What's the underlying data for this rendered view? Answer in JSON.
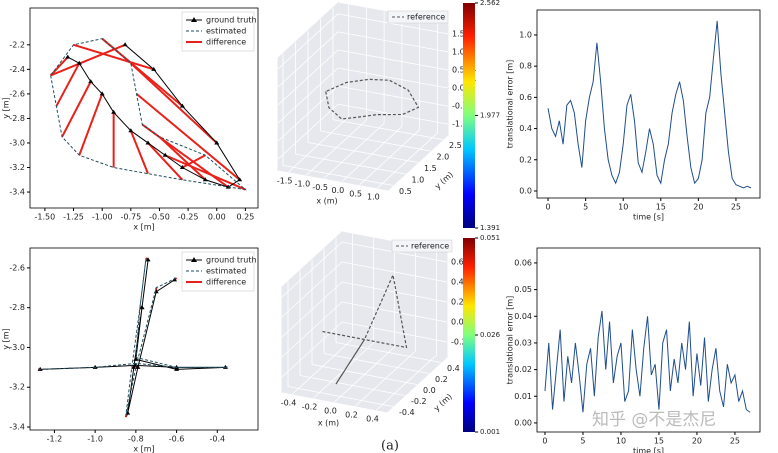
{
  "chart_data": [
    {
      "type": "line",
      "xlabel": "x [m]",
      "ylabel": "y [m]",
      "legend": "upper right",
      "xlim": [
        -1.63,
        0.36
      ],
      "ylim": [
        -3.53,
        -1.9
      ],
      "xticks": [
        {
          "value": -1.5,
          "label": "-1.50"
        },
        {
          "value": -1.25,
          "label": "-1.25"
        },
        {
          "value": -1,
          "label": "-1.00"
        },
        {
          "value": -0.75,
          "label": "-0.75"
        },
        {
          "value": -0.5,
          "label": "-0.50"
        },
        {
          "value": -0.25,
          "label": "-0.25"
        },
        {
          "value": 0,
          "label": "0.00"
        },
        {
          "value": 0.25,
          "label": "0.25"
        }
      ],
      "yticks": [
        -2.2,
        -2.4,
        -2.6,
        -2.8,
        {
          "value": -3,
          "label": "-3.0"
        },
        -3.2,
        -3.4
      ],
      "series": [
        {
          "name": "ground truth",
          "color": "#000000",
          "marker": "triangle",
          "x": [
            -1.3,
            -1.2,
            -1.1,
            -1.0,
            -0.9,
            -0.75,
            -0.6,
            -0.45,
            -0.3,
            -0.1,
            0.1,
            0.2,
            0.0,
            -0.3,
            -0.55,
            -0.8
          ],
          "values": [
            -2.3,
            -2.35,
            -2.5,
            -2.6,
            -2.75,
            -2.9,
            -3.0,
            -3.1,
            -3.2,
            -3.3,
            -3.36,
            -3.3,
            -3.0,
            -2.7,
            -2.4,
            -2.2
          ]
        },
        {
          "name": "estimated",
          "color": "#1f4e5f",
          "dashed": true,
          "x": [
            -1.45,
            -1.4,
            -1.35,
            -1.2,
            -0.9,
            -0.6,
            -0.3,
            0.25,
            -0.1,
            -0.5,
            -0.65,
            -0.7,
            -0.75,
            -1.0,
            -1.25,
            -1.45
          ],
          "values": [
            -2.45,
            -2.7,
            -2.95,
            -3.1,
            -3.2,
            -3.25,
            -3.3,
            -3.38,
            -3.1,
            -2.95,
            -2.85,
            -2.6,
            -2.35,
            -2.15,
            -2.2,
            -2.45
          ]
        },
        {
          "name": "difference",
          "color": "#e8221b"
        }
      ]
    },
    {
      "type": "line3d",
      "xlabel": "x (m)",
      "ylabel": "y (m)",
      "zlabel": "z (m)",
      "legend": "upper right",
      "xlim": [
        -1.8,
        1.3
      ],
      "ylim": [
        0.3,
        2.7
      ],
      "zlim": [
        -1.3,
        1.8
      ],
      "xticks": [
        -1.5,
        {
          "value": -1,
          "label": "-1.0"
        },
        -0.5,
        {
          "value": 0,
          "label": "0.0"
        },
        0.5,
        {
          "value": 1,
          "label": "1.0"
        }
      ],
      "yticks": [
        0.5,
        {
          "value": 1,
          "label": "1.0"
        },
        1.5,
        {
          "value": 2,
          "label": "2.0"
        },
        2.5
      ],
      "zticks": [
        {
          "value": -1,
          "label": "-1.0"
        },
        -0.5,
        {
          "value": 0,
          "label": "0.0"
        },
        0.5,
        {
          "value": 1,
          "label": "1.0"
        },
        1.5
      ],
      "series": [
        {
          "name": "reference",
          "color": "#555555",
          "dashed": true,
          "x": [
            -1.3,
            -1.0,
            -0.5,
            0,
            0.5,
            1.0,
            1.1,
            0.6,
            0,
            -0.5,
            -1.0,
            -1.3
          ],
          "y": [
            1.5,
            1.2,
            1.0,
            0.9,
            1.0,
            1.3,
            1.8,
            2.1,
            2.2,
            2.1,
            1.9,
            1.5
          ],
          "z": [
            0.2,
            0.0,
            -0.1,
            0.1,
            0.2,
            0.1,
            0.0,
            0.2,
            0.3,
            0.3,
            0.25,
            0.2
          ]
        }
      ],
      "colorbar_lim": [
        1.391,
        2.562
      ],
      "colorbar_ticks": [
        1.391,
        1.977,
        2.562
      ]
    },
    {
      "type": "line",
      "xlabel": "time [s]",
      "ylabel": "translational error [m]",
      "color": "#1f4e8f",
      "xlim": [
        -1.47,
        28.2
      ],
      "ylim": [
        -0.045,
        1.16
      ],
      "xticks": [
        0,
        5,
        10,
        15,
        20,
        25
      ],
      "yticks": [
        {
          "value": 0,
          "label": "0.0"
        },
        0.2,
        0.4,
        0.6,
        0.8,
        {
          "value": 1,
          "label": "1.0"
        }
      ],
      "x": [
        0,
        0.5,
        1,
        1.5,
        2,
        2.5,
        3,
        3.5,
        4,
        4.5,
        5,
        5.5,
        6,
        6.5,
        7,
        7.5,
        8,
        8.5,
        9,
        9.5,
        10,
        10.5,
        11,
        11.5,
        12,
        12.5,
        13,
        13.5,
        14,
        14.5,
        15,
        15.5,
        16,
        16.5,
        17,
        17.5,
        18,
        18.5,
        19,
        19.5,
        20,
        20.5,
        21,
        21.5,
        22,
        22.5,
        23,
        23.5,
        24,
        24.5,
        25,
        25.5,
        26,
        26.5,
        27
      ],
      "values": [
        0.53,
        0.4,
        0.35,
        0.45,
        0.3,
        0.55,
        0.58,
        0.5,
        0.3,
        0.15,
        0.45,
        0.6,
        0.7,
        0.95,
        0.7,
        0.4,
        0.2,
        0.1,
        0.05,
        0.12,
        0.3,
        0.55,
        0.62,
        0.45,
        0.18,
        0.12,
        0.25,
        0.4,
        0.3,
        0.1,
        0.05,
        0.2,
        0.3,
        0.5,
        0.62,
        0.7,
        0.58,
        0.35,
        0.15,
        0.05,
        0.08,
        0.2,
        0.5,
        0.6,
        0.85,
        1.09,
        0.75,
        0.5,
        0.25,
        0.08,
        0.04,
        0.03,
        0.02,
        0.03,
        0.02
      ]
    },
    {
      "type": "line",
      "xlabel": "x [m]",
      "ylabel": "y [m]",
      "legend": "upper right",
      "xlim": [
        -1.32,
        -0.2
      ],
      "ylim": [
        -3.415,
        -2.5
      ],
      "xticks": [
        -1.2,
        {
          "value": -1,
          "label": "-1.0"
        },
        -0.8,
        -0.6,
        -0.4
      ],
      "yticks": [
        -2.6,
        -2.8,
        {
          "value": -3,
          "label": "-3.0"
        },
        -3.2,
        -3.4
      ],
      "series": [
        {
          "name": "ground truth",
          "color": "#000000",
          "marker": "triangle",
          "x": [
            -1.27,
            -1.0,
            -0.8,
            -0.6,
            -0.36,
            -0.6,
            -0.8,
            -0.77,
            -0.74,
            -0.77,
            -0.81,
            -0.84,
            -0.79,
            -0.7,
            -0.61
          ],
          "values": [
            -3.11,
            -3.1,
            -3.09,
            -3.1,
            -3.1,
            -3.11,
            -3.06,
            -2.8,
            -2.56,
            -2.8,
            -3.1,
            -3.33,
            -3.1,
            -2.72,
            -2.66
          ]
        },
        {
          "name": "estimated",
          "color": "#1f4e5f",
          "dashed": true,
          "x": [
            -1.28,
            -1.0,
            -0.8,
            -0.6,
            -0.35,
            -0.6,
            -0.8,
            -0.78,
            -0.75,
            -0.78,
            -0.82,
            -0.85,
            -0.8,
            -0.7,
            -0.6
          ],
          "values": [
            -3.11,
            -3.1,
            -3.08,
            -3.1,
            -3.1,
            -3.1,
            -3.05,
            -2.8,
            -2.55,
            -2.8,
            -3.1,
            -3.35,
            -3.1,
            -2.7,
            -2.65
          ]
        },
        {
          "name": "difference",
          "color": "#e8221b"
        }
      ]
    },
    {
      "type": "line3d",
      "xlabel": "x (m)",
      "ylabel": "y (m)",
      "zlabel": "z (m)",
      "legend": "upper right",
      "xlim": [
        -0.5,
        0.5
      ],
      "ylim": [
        -0.5,
        0.5
      ],
      "zlim": [
        -0.35,
        0.7
      ],
      "xticks": [
        -0.4,
        -0.2,
        {
          "value": 0,
          "label": "0.0"
        },
        0.2,
        0.4
      ],
      "yticks": [
        -0.4,
        -0.2,
        {
          "value": 0,
          "label": "0.0"
        },
        0.2,
        0.4
      ],
      "zticks": [
        -0.2,
        {
          "value": 0,
          "label": "0.0"
        },
        0.2,
        0.4,
        0.6
      ],
      "series": [
        {
          "name": "reference",
          "color": "#555555",
          "dashed": true,
          "x": [
            -0.4,
            -0.2,
            0,
            0.2,
            0.4,
            0.1,
            0,
            -0.1,
            0
          ],
          "y": [
            0,
            0,
            0,
            0,
            0,
            0.3,
            0,
            -0.3,
            0
          ],
          "z": [
            0,
            0,
            0,
            0,
            0,
            0.5,
            0,
            -0.3,
            0
          ]
        }
      ],
      "colorbar_lim": [
        0.001,
        0.051
      ],
      "colorbar_ticks": [
        0.001,
        0.026,
        0.051
      ]
    },
    {
      "type": "line",
      "xlabel": "time [s]",
      "ylabel": "translational error [m]",
      "color": "#1f4e8f",
      "xlim": [
        -1.05,
        28.3
      ],
      "ylim": [
        -0.0034,
        0.0656
      ],
      "xticks": [
        0,
        5,
        10,
        15,
        20,
        25
      ],
      "yticks": [
        {
          "value": 0,
          "label": "0.00"
        },
        {
          "value": 0.01,
          "label": "0.01"
        },
        {
          "value": 0.02,
          "label": "0.02"
        },
        {
          "value": 0.03,
          "label": "0.03"
        },
        {
          "value": 0.04,
          "label": "0.04"
        },
        {
          "value": 0.05,
          "label": "0.05"
        },
        {
          "value": 0.06,
          "label": "0.06"
        }
      ],
      "x": [
        0,
        0.5,
        1,
        1.5,
        2,
        2.5,
        3,
        3.5,
        4,
        4.5,
        5,
        5.5,
        6,
        6.5,
        7,
        7.5,
        8,
        8.5,
        9,
        9.5,
        10,
        10.5,
        11,
        11.5,
        12,
        12.5,
        13,
        13.5,
        14,
        14.5,
        15,
        15.5,
        16,
        16.5,
        17,
        17.5,
        18,
        18.5,
        19,
        19.5,
        20,
        20.5,
        21,
        21.5,
        22,
        22.5,
        23,
        23.5,
        24,
        24.5,
        25,
        25.5,
        26,
        26.5,
        27
      ],
      "values": [
        0.012,
        0.03,
        0.005,
        0.02,
        0.035,
        0.008,
        0.025,
        0.015,
        0.03,
        0.018,
        0.004,
        0.022,
        0.028,
        0.01,
        0.032,
        0.042,
        0.02,
        0.038,
        0.015,
        0.025,
        0.03,
        0.008,
        0.012,
        0.035,
        0.02,
        0.01,
        0.028,
        0.04,
        0.018,
        0.022,
        0.005,
        0.03,
        0.035,
        0.012,
        0.024,
        0.015,
        0.03,
        0.02,
        0.038,
        0.01,
        0.026,
        0.014,
        0.032,
        0.008,
        0.02,
        0.028,
        0.012,
        0.006,
        0.022,
        0.015,
        0.018,
        0.008,
        0.012,
        0.005,
        0.004
      ]
    }
  ],
  "caption": "(a)",
  "watermark": "知乎 @不是杰尼"
}
